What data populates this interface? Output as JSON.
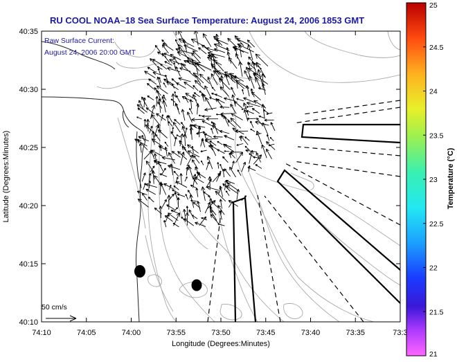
{
  "title": "RU COOL  NOAA–18  Sea Surface Temperature:  August 24, 2006 1853 GMT",
  "annotation": {
    "line1": "Raw Surface Current:",
    "line2": "August 24, 2006 20:00 GMT"
  },
  "scale_label": "50 cm/s",
  "axes": {
    "xlabel": "Longitude (Degrees:Minutes)",
    "ylabel": "Latitude (Degrees:Minutes)",
    "x_ticks": [
      "74:10",
      "74:05",
      "74:00",
      "73:55",
      "73:50",
      "73:45",
      "73:40",
      "73:35",
      "73:3"
    ],
    "y_ticks": [
      "40:35",
      "40:30",
      "40:25",
      "40:20",
      "40:15",
      "40:10"
    ]
  },
  "colorbar": {
    "label": "Temperature (°C)",
    "ticks": [
      "25",
      "24.5",
      "24",
      "23.5",
      "23",
      "22.5",
      "22",
      "21.5",
      "21"
    ],
    "min": 21,
    "max": 25
  },
  "colors": {
    "title": "#1a1aa8",
    "annotation": "#1a1aa8",
    "land_outline": "#222222",
    "bathymetry": "#a8a8a8",
    "vectors": "#000000"
  }
}
